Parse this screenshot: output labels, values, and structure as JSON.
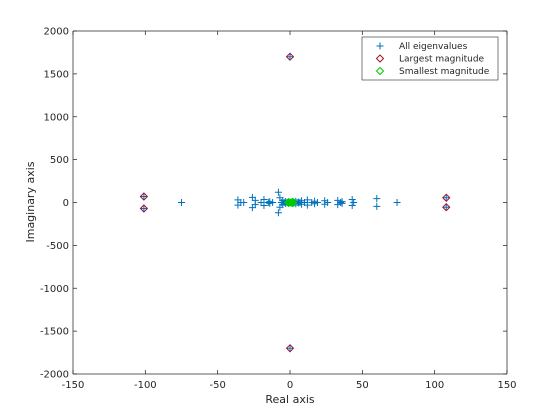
{
  "colors": {
    "all": "#0072bd",
    "largest": "#a2142f",
    "smallest": "#00cc00",
    "axis": "#262626",
    "legend_border": "#262626"
  },
  "chart_data": {
    "type": "scatter",
    "xlabel": "Real axis",
    "ylabel": "Imaginary axis",
    "xlim": [
      -150,
      150
    ],
    "ylim": [
      -2000,
      2000
    ],
    "xticks": [
      -150,
      -100,
      -50,
      0,
      50,
      100,
      150
    ],
    "xtick_labels": [
      "-150",
      "-100",
      "-50",
      "0",
      "50",
      "100",
      "150"
    ],
    "yticks": [
      -2000,
      -1500,
      -1000,
      -500,
      0,
      500,
      1000,
      1500,
      2000
    ],
    "ytick_labels": [
      "-2000",
      "-1500",
      "-1000",
      "-500",
      "0",
      "500",
      "1000",
      "1500",
      "2000"
    ],
    "grid": false,
    "legend_position": "top-right",
    "series": [
      {
        "name": "All eigenvalues",
        "marker": "plus",
        "color_key": "all",
        "points": [
          [
            0,
            1700
          ],
          [
            0,
            -1700
          ],
          [
            -101,
            70
          ],
          [
            -101,
            -70
          ],
          [
            108,
            55
          ],
          [
            108,
            -55
          ],
          [
            -75,
            0
          ],
          [
            74,
            0
          ],
          [
            -36,
            30
          ],
          [
            -36,
            -30
          ],
          [
            -34,
            0
          ],
          [
            -32,
            0
          ],
          [
            -26,
            60
          ],
          [
            -26,
            -60
          ],
          [
            -24,
            25
          ],
          [
            -24,
            -25
          ],
          [
            -20,
            0
          ],
          [
            -18,
            35
          ],
          [
            -18,
            -35
          ],
          [
            -15,
            0
          ],
          [
            -14,
            10
          ],
          [
            -14,
            -10
          ],
          [
            -12,
            0
          ],
          [
            -8,
            120
          ],
          [
            -8,
            -120
          ],
          [
            -7,
            55
          ],
          [
            -7,
            -55
          ],
          [
            -6,
            0
          ],
          [
            -5,
            25
          ],
          [
            -5,
            -25
          ],
          [
            -4,
            0
          ],
          [
            -3,
            12
          ],
          [
            -3,
            -12
          ],
          [
            -2,
            0
          ],
          [
            -1,
            5
          ],
          [
            -1,
            -5
          ],
          [
            0,
            0
          ],
          [
            1,
            0
          ],
          [
            2,
            8
          ],
          [
            2,
            -8
          ],
          [
            3,
            0
          ],
          [
            4,
            15
          ],
          [
            4,
            -15
          ],
          [
            5,
            0
          ],
          [
            6,
            6
          ],
          [
            6,
            -6
          ],
          [
            7,
            0
          ],
          [
            8,
            20
          ],
          [
            8,
            -20
          ],
          [
            10,
            0
          ],
          [
            12,
            30
          ],
          [
            12,
            -30
          ],
          [
            15,
            0
          ],
          [
            17,
            15
          ],
          [
            17,
            -15
          ],
          [
            19,
            0
          ],
          [
            24,
            20
          ],
          [
            24,
            -20
          ],
          [
            26,
            0
          ],
          [
            33,
            25
          ],
          [
            33,
            -25
          ],
          [
            35,
            0
          ],
          [
            36,
            10
          ],
          [
            36,
            -10
          ],
          [
            43,
            35
          ],
          [
            43,
            -35
          ],
          [
            44,
            0
          ],
          [
            60,
            45
          ],
          [
            60,
            -45
          ]
        ]
      },
      {
        "name": "Largest magnitude",
        "marker": "diamond",
        "color_key": "largest",
        "points": [
          [
            0,
            1700
          ],
          [
            0,
            -1700
          ],
          [
            -101,
            70
          ],
          [
            -101,
            -70
          ],
          [
            108,
            55
          ],
          [
            108,
            -55
          ]
        ]
      },
      {
        "name": "Smallest magnitude",
        "marker": "diamond",
        "color_key": "smallest",
        "points": [
          [
            0,
            0
          ],
          [
            1,
            0
          ],
          [
            -1,
            5
          ],
          [
            -1,
            -5
          ],
          [
            2,
            8
          ],
          [
            2,
            -8
          ]
        ]
      }
    ]
  }
}
